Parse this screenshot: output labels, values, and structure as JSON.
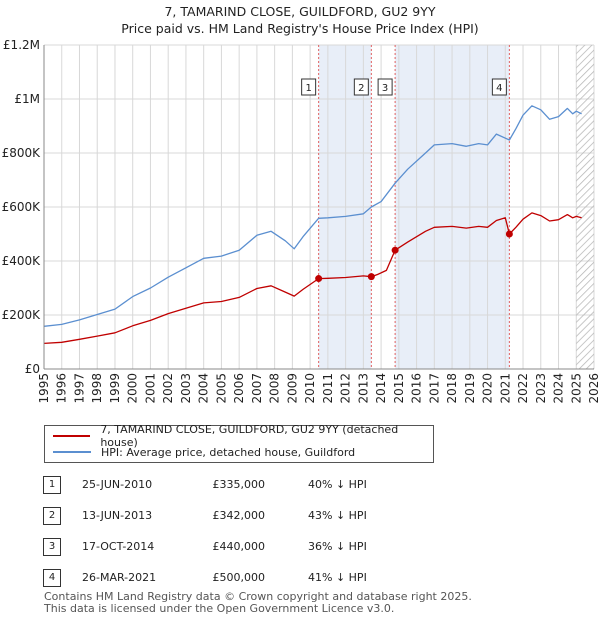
{
  "title_line1": "7, TAMARIND CLOSE, GUILDFORD, GU2 9YY",
  "title_line2": "Price paid vs. HM Land Registry's House Price Index (HPI)",
  "legend": {
    "property": "7, TAMARIND CLOSE, GUILDFORD, GU2 9YY (detached house)",
    "hpi": "HPI: Average price, detached house, Guildford"
  },
  "colors": {
    "property": "#c00000",
    "hpi": "#5b8fd0",
    "shade": "#e8eef8"
  },
  "transactions": [
    {
      "num": "1",
      "date": "25-JUN-2010",
      "price": "£335,000",
      "hpi": "40% ↓ HPI"
    },
    {
      "num": "2",
      "date": "13-JUN-2013",
      "price": "£342,000",
      "hpi": "43% ↓ HPI"
    },
    {
      "num": "3",
      "date": "17-OCT-2014",
      "price": "£440,000",
      "hpi": "36% ↓ HPI"
    },
    {
      "num": "4",
      "date": "26-MAR-2021",
      "price": "£500,000",
      "hpi": "41% ↓ HPI"
    }
  ],
  "footer_line1": "Contains HM Land Registry data © Crown copyright and database right 2025.",
  "footer_line2": "This data is licensed under the Open Government Licence v3.0.",
  "chart_data": {
    "type": "line",
    "title": "Price paid vs. HM Land Registry's House Price Index (HPI)",
    "xlim": [
      1995,
      2026
    ],
    "ylim": [
      0,
      1200000
    ],
    "x_ticks": [
      "1995",
      "1996",
      "1997",
      "1998",
      "1999",
      "2000",
      "2001",
      "2002",
      "2003",
      "2004",
      "2005",
      "2006",
      "2007",
      "2008",
      "2009",
      "2010",
      "2011",
      "2012",
      "2013",
      "2014",
      "2015",
      "2016",
      "2017",
      "2018",
      "2019",
      "2020",
      "2021",
      "2022",
      "2023",
      "2024",
      "2025",
      "2026"
    ],
    "y_ticks": [
      {
        "value": 0,
        "label": "£0"
      },
      {
        "value": 200000,
        "label": "£200K"
      },
      {
        "value": 400000,
        "label": "£400K"
      },
      {
        "value": 600000,
        "label": "£600K"
      },
      {
        "value": 800000,
        "label": "£800K"
      },
      {
        "value": 1000000,
        "label": "£1M"
      },
      {
        "value": 1200000,
        "label": "£1.2M"
      }
    ],
    "grid": true,
    "shaded_periods": [
      [
        2010.48,
        2013.45
      ],
      [
        2014.79,
        2021.23
      ]
    ],
    "forecast_from": 2025.0,
    "sales": [
      {
        "label": "1",
        "x": 2010.48,
        "y": 335000
      },
      {
        "label": "2",
        "x": 2013.45,
        "y": 342000
      },
      {
        "label": "3",
        "x": 2014.79,
        "y": 440000
      },
      {
        "label": "4",
        "x": 2021.23,
        "y": 500000
      }
    ],
    "series": [
      {
        "name": "HPI: Average price, detached house, Guildford",
        "color": "#5b8fd0",
        "points": [
          [
            1995.0,
            158000
          ],
          [
            1996.0,
            165000
          ],
          [
            1997.0,
            182000
          ],
          [
            1998.0,
            202000
          ],
          [
            1999.0,
            222000
          ],
          [
            2000.0,
            268000
          ],
          [
            2001.0,
            300000
          ],
          [
            2002.0,
            340000
          ],
          [
            2003.0,
            375000
          ],
          [
            2004.0,
            410000
          ],
          [
            2005.0,
            418000
          ],
          [
            2006.0,
            440000
          ],
          [
            2007.0,
            495000
          ],
          [
            2007.8,
            510000
          ],
          [
            2008.6,
            475000
          ],
          [
            2009.1,
            445000
          ],
          [
            2009.6,
            490000
          ],
          [
            2010.48,
            558000
          ],
          [
            2011.0,
            560000
          ],
          [
            2012.0,
            565000
          ],
          [
            2013.0,
            575000
          ],
          [
            2013.45,
            600000
          ],
          [
            2014.0,
            620000
          ],
          [
            2014.79,
            688000
          ],
          [
            2015.5,
            740000
          ],
          [
            2016.5,
            800000
          ],
          [
            2017.0,
            830000
          ],
          [
            2018.0,
            835000
          ],
          [
            2018.8,
            825000
          ],
          [
            2019.5,
            835000
          ],
          [
            2020.0,
            830000
          ],
          [
            2020.5,
            870000
          ],
          [
            2021.23,
            848000
          ],
          [
            2021.6,
            890000
          ],
          [
            2022.0,
            940000
          ],
          [
            2022.5,
            975000
          ],
          [
            2023.0,
            960000
          ],
          [
            2023.5,
            925000
          ],
          [
            2024.0,
            935000
          ],
          [
            2024.5,
            965000
          ],
          [
            2024.8,
            945000
          ],
          [
            2025.0,
            955000
          ],
          [
            2025.3,
            945000
          ]
        ]
      },
      {
        "name": "7, TAMARIND CLOSE, GUILDFORD, GU2 9YY (detached house)",
        "color": "#c00000",
        "points": [
          [
            1995.0,
            95000
          ],
          [
            1996.0,
            99000
          ],
          [
            1997.0,
            110000
          ],
          [
            1998.0,
            122000
          ],
          [
            1999.0,
            134000
          ],
          [
            2000.0,
            160000
          ],
          [
            2001.0,
            180000
          ],
          [
            2002.0,
            205000
          ],
          [
            2003.0,
            225000
          ],
          [
            2004.0,
            245000
          ],
          [
            2005.0,
            250000
          ],
          [
            2006.0,
            265000
          ],
          [
            2007.0,
            298000
          ],
          [
            2007.8,
            308000
          ],
          [
            2008.6,
            285000
          ],
          [
            2009.1,
            270000
          ],
          [
            2009.6,
            295000
          ],
          [
            2010.48,
            335000
          ],
          [
            2011.0,
            336000
          ],
          [
            2012.0,
            339000
          ],
          [
            2013.0,
            345000
          ],
          [
            2013.45,
            342000
          ],
          [
            2013.8,
            350000
          ],
          [
            2014.3,
            365000
          ],
          [
            2014.79,
            440000
          ],
          [
            2015.5,
            470000
          ],
          [
            2016.5,
            510000
          ],
          [
            2017.0,
            525000
          ],
          [
            2018.0,
            528000
          ],
          [
            2018.8,
            522000
          ],
          [
            2019.5,
            528000
          ],
          [
            2020.0,
            525000
          ],
          [
            2020.5,
            550000
          ],
          [
            2021.0,
            560000
          ],
          [
            2021.23,
            500000
          ],
          [
            2021.6,
            525000
          ],
          [
            2022.0,
            555000
          ],
          [
            2022.5,
            578000
          ],
          [
            2023.0,
            568000
          ],
          [
            2023.5,
            548000
          ],
          [
            2024.0,
            553000
          ],
          [
            2024.5,
            572000
          ],
          [
            2024.8,
            560000
          ],
          [
            2025.0,
            565000
          ],
          [
            2025.3,
            560000
          ]
        ]
      }
    ]
  }
}
